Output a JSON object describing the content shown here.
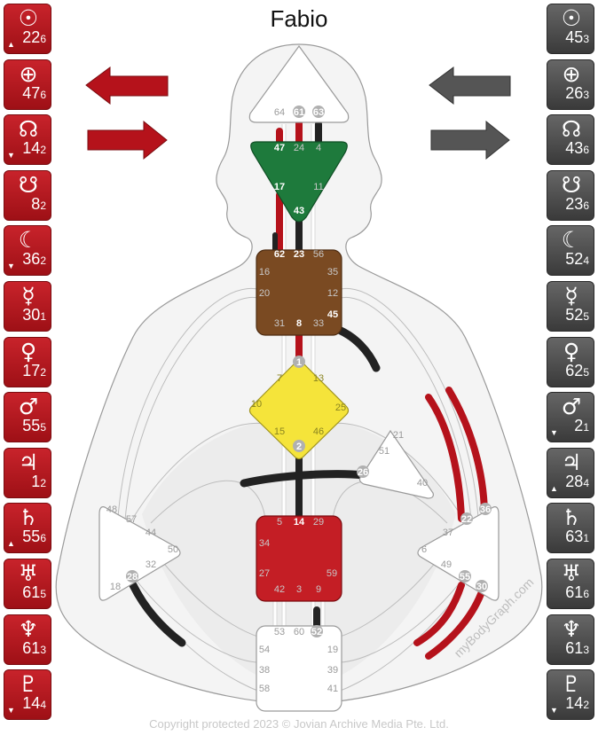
{
  "title": "Fabio",
  "watermark": "myBodyGraph.com",
  "copyright": "Copyright protected 2023 © Jovian Archive Media Pte. Ltd.",
  "colors": {
    "design": "#b5121b",
    "personality": "#4a4a4a",
    "head": "#ffffff",
    "ajna": "#1e7a3c",
    "throat": "#7a4a22",
    "g": "#f5e43a",
    "sacral": "#c41e25"
  },
  "design": [
    {
      "planet": "sun-icon",
      "symbol": "☉",
      "gate": "22",
      "line": "6",
      "mark": "▲"
    },
    {
      "planet": "earth-icon",
      "symbol": "⊕",
      "gate": "47",
      "line": "6",
      "mark": ""
    },
    {
      "planet": "north-node-icon",
      "symbol": "☊",
      "gate": "14",
      "line": "2",
      "mark": "▼"
    },
    {
      "planet": "south-node-icon",
      "symbol": "☋",
      "gate": "8",
      "line": "2",
      "mark": ""
    },
    {
      "planet": "moon-icon",
      "symbol": "☾",
      "gate": "36",
      "line": "2",
      "mark": "▼"
    },
    {
      "planet": "mercury-icon",
      "symbol": "☿",
      "gate": "30",
      "line": "1",
      "mark": ""
    },
    {
      "planet": "venus-icon",
      "symbol": "♀",
      "gate": "17",
      "line": "2",
      "mark": ""
    },
    {
      "planet": "mars-icon",
      "symbol": "♂",
      "gate": "55",
      "line": "5",
      "mark": ""
    },
    {
      "planet": "jupiter-icon",
      "symbol": "♃",
      "gate": "1",
      "line": "2",
      "mark": ""
    },
    {
      "planet": "saturn-icon",
      "symbol": "♄",
      "gate": "55",
      "line": "6",
      "mark": "▲"
    },
    {
      "planet": "uranus-icon",
      "symbol": "♅",
      "gate": "61",
      "line": "5",
      "mark": ""
    },
    {
      "planet": "neptune-icon",
      "symbol": "♆",
      "gate": "61",
      "line": "3",
      "mark": ""
    },
    {
      "planet": "pluto-icon",
      "symbol": "♇",
      "gate": "14",
      "line": "4",
      "mark": "▼"
    }
  ],
  "personality": [
    {
      "planet": "sun-icon",
      "symbol": "☉",
      "gate": "45",
      "line": "3",
      "mark": ""
    },
    {
      "planet": "earth-icon",
      "symbol": "⊕",
      "gate": "26",
      "line": "3",
      "mark": ""
    },
    {
      "planet": "north-node-icon",
      "symbol": "☊",
      "gate": "43",
      "line": "6",
      "mark": ""
    },
    {
      "planet": "south-node-icon",
      "symbol": "☋",
      "gate": "23",
      "line": "6",
      "mark": ""
    },
    {
      "planet": "moon-icon",
      "symbol": "☾",
      "gate": "52",
      "line": "4",
      "mark": ""
    },
    {
      "planet": "mercury-icon",
      "symbol": "☿",
      "gate": "52",
      "line": "5",
      "mark": ""
    },
    {
      "planet": "venus-icon",
      "symbol": "♀",
      "gate": "62",
      "line": "5",
      "mark": ""
    },
    {
      "planet": "mars-icon",
      "symbol": "♂",
      "gate": "2",
      "line": "1",
      "mark": "▼"
    },
    {
      "planet": "jupiter-icon",
      "symbol": "♃",
      "gate": "28",
      "line": "4",
      "mark": "▲"
    },
    {
      "planet": "saturn-icon",
      "symbol": "♄",
      "gate": "63",
      "line": "1",
      "mark": ""
    },
    {
      "planet": "uranus-icon",
      "symbol": "♅",
      "gate": "61",
      "line": "6",
      "mark": ""
    },
    {
      "planet": "neptune-icon",
      "symbol": "♆",
      "gate": "61",
      "line": "3",
      "mark": ""
    },
    {
      "planet": "pluto-icon",
      "symbol": "♇",
      "gate": "14",
      "line": "2",
      "mark": "▼"
    }
  ],
  "gates": {
    "head": [
      "64",
      "61",
      "63"
    ],
    "ajna": [
      "47",
      "24",
      "4",
      "17",
      "11",
      "43"
    ],
    "throat": [
      "62",
      "23",
      "56",
      "16",
      "35",
      "20",
      "12",
      "45",
      "31",
      "8",
      "33"
    ],
    "g": [
      "1",
      "7",
      "13",
      "10",
      "25",
      "15",
      "46",
      "2"
    ],
    "ego": [
      "21",
      "51",
      "26",
      "40"
    ],
    "sacral": [
      "5",
      "14",
      "29",
      "34",
      "27",
      "59",
      "42",
      "3",
      "9"
    ],
    "spleen": [
      "48",
      "57",
      "44",
      "50",
      "32",
      "18",
      "28"
    ],
    "solar_plexus": [
      "36",
      "22",
      "37",
      "6",
      "49",
      "55",
      "30"
    ],
    "root": [
      "53",
      "60",
      "52",
      "54",
      "19",
      "38",
      "39",
      "58",
      "41"
    ]
  }
}
